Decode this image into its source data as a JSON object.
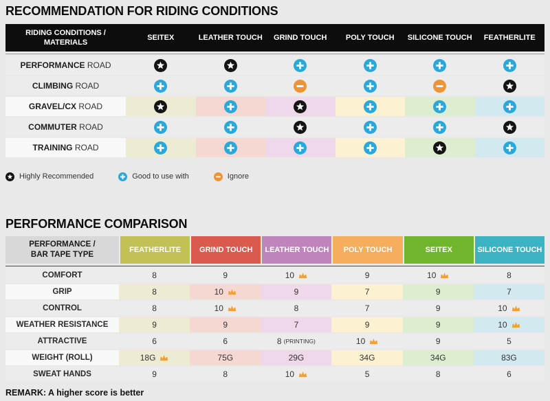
{
  "titles": {
    "section1": "RECOMMENDATION FOR RIDING CONDITIONS",
    "section2": "PERFORMANCE COMPARISON"
  },
  "colors": {
    "page_bg": "#e9e9e9",
    "row_gray": "#ececec",
    "row_label_light": "#f8f8f8",
    "header1_bg": "#0d0d0d",
    "header2_label_bg": "#d8d8d8",
    "icon_star": "#141414",
    "icon_plus": "#2aa7db",
    "icon_minus": "#ee9434",
    "crown": "#f5a033",
    "pale": [
      "#edecd2",
      "#f6d8d2",
      "#eed8e9",
      "#fcf2d1",
      "#ddedd0",
      "#d2e9ef"
    ]
  },
  "table1": {
    "header_label": "RIDING CONDITIONS / MATERIALS",
    "columns": [
      "SEITEX",
      "LEATHER TOUCH",
      "GRIND TOUCH",
      "POLY TOUCH",
      "SILICONE TOUCH",
      "FEATHERLITE"
    ],
    "rows": [
      {
        "label_bold": "PERFORMANCE",
        "label_rest": "ROAD",
        "colored": false,
        "cells": [
          "star",
          "star",
          "plus",
          "plus",
          "plus",
          "plus"
        ]
      },
      {
        "label_bold": "CLIMBING",
        "label_rest": "ROAD",
        "colored": false,
        "cells": [
          "plus",
          "plus",
          "minus",
          "plus",
          "minus",
          "star"
        ]
      },
      {
        "label_bold": "GRAVEL/CX",
        "label_rest": "ROAD",
        "colored": true,
        "cells": [
          "star",
          "plus",
          "star",
          "plus",
          "plus",
          "plus"
        ]
      },
      {
        "label_bold": "COMMUTER",
        "label_rest": "ROAD",
        "colored": false,
        "cells": [
          "plus",
          "plus",
          "star",
          "plus",
          "plus",
          "star"
        ]
      },
      {
        "label_bold": "TRAINING",
        "label_rest": "ROAD",
        "colored": true,
        "cells": [
          "plus",
          "plus",
          "plus",
          "plus",
          "star",
          "plus"
        ]
      }
    ]
  },
  "legend": [
    {
      "icon": "star",
      "label": "Highly Recommended"
    },
    {
      "icon": "plus",
      "label": "Good to use with"
    },
    {
      "icon": "minus",
      "label": "Ignore"
    }
  ],
  "table2": {
    "header_label": "PERFORMANCE / BAR TAPE TYPE",
    "columns": [
      {
        "label": "FEATHERLITE",
        "color": "#c1c156"
      },
      {
        "label": "GRIND TOUCH",
        "color": "#d85b4d"
      },
      {
        "label": "LEATHER TOUCH",
        "color": "#c084bc"
      },
      {
        "label": "POLY TOUCH",
        "color": "#f5ad5e"
      },
      {
        "label": "SEITEX",
        "color": "#70b62c"
      },
      {
        "label": "SILICONE TOUCH",
        "color": "#3cb3c3"
      }
    ],
    "rows": [
      {
        "label": "COMFORT",
        "colored": false,
        "cells": [
          {
            "v": "8"
          },
          {
            "v": "9"
          },
          {
            "v": "10",
            "crown": true
          },
          {
            "v": "9"
          },
          {
            "v": "10",
            "crown": true
          },
          {
            "v": "8"
          }
        ]
      },
      {
        "label": "GRIP",
        "colored": true,
        "cells": [
          {
            "v": "8"
          },
          {
            "v": "10",
            "crown": true
          },
          {
            "v": "9"
          },
          {
            "v": "7"
          },
          {
            "v": "9"
          },
          {
            "v": "7"
          }
        ]
      },
      {
        "label": "CONTROL",
        "colored": false,
        "cells": [
          {
            "v": "8"
          },
          {
            "v": "10",
            "crown": true
          },
          {
            "v": "8"
          },
          {
            "v": "7"
          },
          {
            "v": "9"
          },
          {
            "v": "10",
            "crown": true
          }
        ]
      },
      {
        "label": "WEATHER RESISTANCE",
        "colored": true,
        "cells": [
          {
            "v": "9"
          },
          {
            "v": "9"
          },
          {
            "v": "7"
          },
          {
            "v": "9"
          },
          {
            "v": "9"
          },
          {
            "v": "10",
            "crown": true
          }
        ]
      },
      {
        "label": "ATTRACTIVE",
        "colored": false,
        "cells": [
          {
            "v": "6"
          },
          {
            "v": "6"
          },
          {
            "v": "8",
            "note": "(PRINTING)"
          },
          {
            "v": "10",
            "crown": true
          },
          {
            "v": "9"
          },
          {
            "v": "5"
          }
        ]
      },
      {
        "label": "WEIGHT (ROLL)",
        "colored": true,
        "cells": [
          {
            "v": "18G",
            "crown": true
          },
          {
            "v": "75G"
          },
          {
            "v": "29G"
          },
          {
            "v": "34G"
          },
          {
            "v": "34G"
          },
          {
            "v": "83G"
          }
        ]
      },
      {
        "label": "SWEAT HANDS",
        "colored": false,
        "cells": [
          {
            "v": "9"
          },
          {
            "v": "8"
          },
          {
            "v": "10",
            "crown": true
          },
          {
            "v": "5"
          },
          {
            "v": "8"
          },
          {
            "v": "6"
          }
        ]
      }
    ]
  },
  "remark": "REMARK: A higher score is better"
}
